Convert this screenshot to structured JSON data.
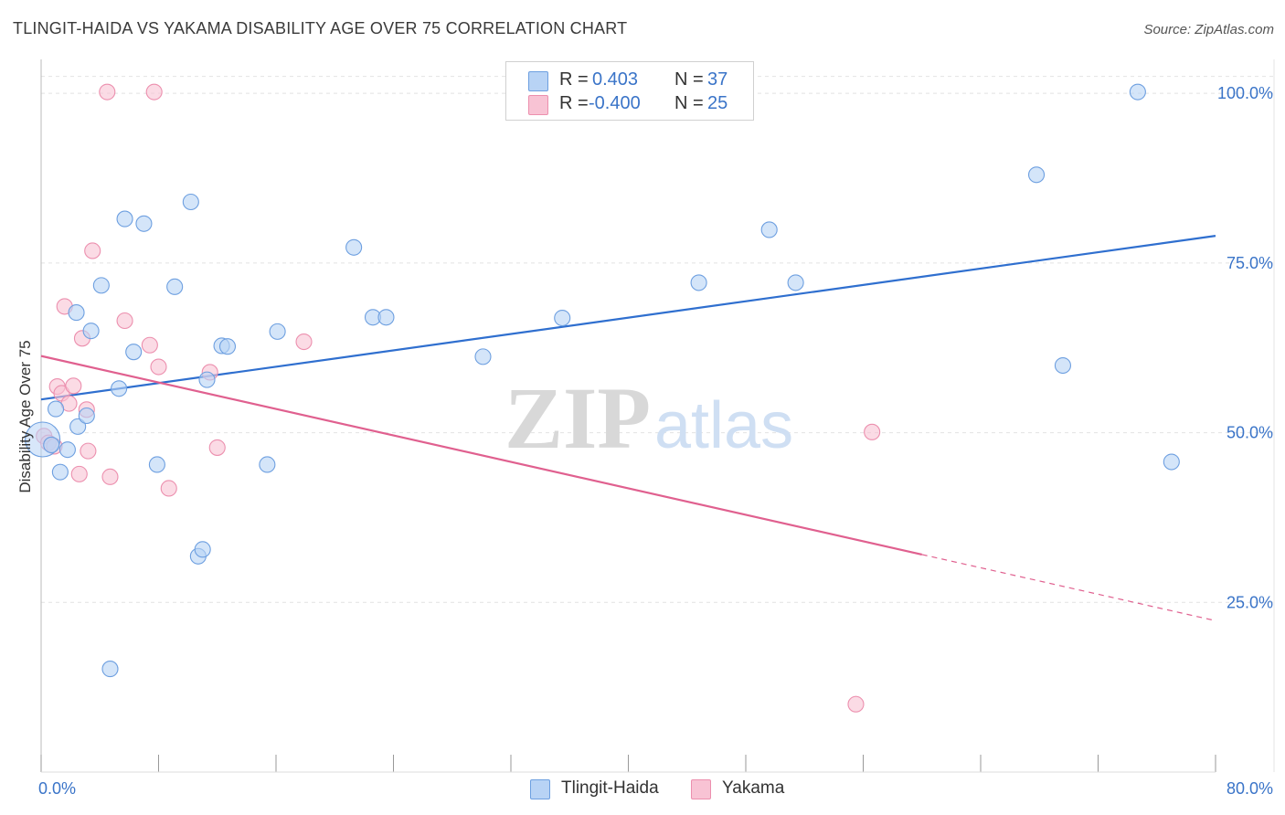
{
  "header": {
    "title": "TLINGIT-HAIDA VS YAKAMA DISABILITY AGE OVER 75 CORRELATION CHART",
    "source": "Source: ZipAtlas.com"
  },
  "watermark": {
    "zip": "ZIP",
    "atlas": "atlas"
  },
  "legend": {
    "r_label": "R =",
    "n_label": "N =",
    "rows": [
      {
        "name": "Tlingit-Haida",
        "r": "0.403",
        "n": "37"
      },
      {
        "name": "Yakama",
        "r": "-0.400",
        "n": "25"
      }
    ]
  },
  "colors": {
    "tlingit_fill": "#b8d3f5",
    "tlingit_stroke": "#6d9fe0",
    "tlingit_line": "#2f6fcf",
    "yakama_fill": "#f8c3d4",
    "yakama_stroke": "#ec8fae",
    "yakama_line": "#e0608f",
    "axis_label": "#3a74c8",
    "grid": "#e2e2e2"
  },
  "chart_data": {
    "type": "scatter",
    "title": "TLINGIT-HAIDA VS YAKAMA DISABILITY AGE OVER 75 CORRELATION CHART",
    "xlabel": "",
    "ylabel": "Disability Age Over 75",
    "xlim": [
      0,
      80
    ],
    "ylim": [
      0,
      105
    ],
    "x_tick_labels": [
      "0.0%",
      "80.0%"
    ],
    "y_ticks": [
      25,
      50,
      75,
      100
    ],
    "y_tick_labels": [
      "25.0%",
      "50.0%",
      "75.0%",
      "100.0%"
    ],
    "grid": true,
    "legend_position": "top-center",
    "series": [
      {
        "name": "Tlingit-Haida",
        "r": 0.403,
        "n": 37,
        "trend": {
          "x": [
            0,
            80
          ],
          "y": [
            54.9,
            79.0
          ],
          "solid_until": 80
        },
        "points": [
          {
            "x": 0.1,
            "y": 49.0,
            "big": true
          },
          {
            "x": 0.7,
            "y": 48.2
          },
          {
            "x": 1.0,
            "y": 53.5
          },
          {
            "x": 1.3,
            "y": 44.2
          },
          {
            "x": 1.8,
            "y": 47.5
          },
          {
            "x": 2.4,
            "y": 67.7
          },
          {
            "x": 2.5,
            "y": 50.9
          },
          {
            "x": 3.1,
            "y": 52.5
          },
          {
            "x": 3.4,
            "y": 65.0
          },
          {
            "x": 4.1,
            "y": 71.7
          },
          {
            "x": 4.7,
            "y": 15.2
          },
          {
            "x": 5.3,
            "y": 56.5
          },
          {
            "x": 5.7,
            "y": 81.5
          },
          {
            "x": 6.3,
            "y": 61.9
          },
          {
            "x": 7.0,
            "y": 80.8
          },
          {
            "x": 7.9,
            "y": 45.3
          },
          {
            "x": 9.1,
            "y": 71.5
          },
          {
            "x": 10.2,
            "y": 84.0
          },
          {
            "x": 10.7,
            "y": 31.8
          },
          {
            "x": 11.0,
            "y": 32.8
          },
          {
            "x": 11.3,
            "y": 57.8
          },
          {
            "x": 12.3,
            "y": 62.8
          },
          {
            "x": 12.7,
            "y": 62.7
          },
          {
            "x": 15.4,
            "y": 45.3
          },
          {
            "x": 16.1,
            "y": 64.9
          },
          {
            "x": 21.3,
            "y": 77.3
          },
          {
            "x": 22.6,
            "y": 67.0
          },
          {
            "x": 23.5,
            "y": 67.0
          },
          {
            "x": 30.1,
            "y": 61.2
          },
          {
            "x": 35.5,
            "y": 66.9
          },
          {
            "x": 44.8,
            "y": 72.1
          },
          {
            "x": 49.6,
            "y": 79.9
          },
          {
            "x": 51.4,
            "y": 72.1
          },
          {
            "x": 67.8,
            "y": 88.0
          },
          {
            "x": 69.6,
            "y": 59.9
          },
          {
            "x": 74.7,
            "y": 100.2
          },
          {
            "x": 77.0,
            "y": 45.7
          }
        ]
      },
      {
        "name": "Yakama",
        "r": -0.4,
        "n": 25,
        "trend": {
          "x": [
            0,
            80
          ],
          "y": [
            61.3,
            22.3
          ],
          "solid_until": 60
        },
        "points": [
          {
            "x": 0.2,
            "y": 49.5
          },
          {
            "x": 0.5,
            "y": 48.5
          },
          {
            "x": 0.9,
            "y": 48.0
          },
          {
            "x": 1.1,
            "y": 56.8
          },
          {
            "x": 1.4,
            "y": 55.8
          },
          {
            "x": 1.6,
            "y": 68.6
          },
          {
            "x": 1.9,
            "y": 54.3
          },
          {
            "x": 2.2,
            "y": 56.9
          },
          {
            "x": 2.6,
            "y": 43.9
          },
          {
            "x": 2.8,
            "y": 63.9
          },
          {
            "x": 3.1,
            "y": 53.4
          },
          {
            "x": 3.2,
            "y": 47.3
          },
          {
            "x": 3.5,
            "y": 76.8
          },
          {
            "x": 4.5,
            "y": 100.2
          },
          {
            "x": 4.7,
            "y": 43.5
          },
          {
            "x": 5.7,
            "y": 66.5
          },
          {
            "x": 7.4,
            "y": 62.9
          },
          {
            "x": 7.7,
            "y": 100.2
          },
          {
            "x": 8.0,
            "y": 59.7
          },
          {
            "x": 8.7,
            "y": 41.8
          },
          {
            "x": 11.5,
            "y": 58.9
          },
          {
            "x": 12.0,
            "y": 47.8
          },
          {
            "x": 17.9,
            "y": 63.4
          },
          {
            "x": 55.5,
            "y": 10.0
          },
          {
            "x": 56.6,
            "y": 50.1
          }
        ]
      }
    ]
  }
}
